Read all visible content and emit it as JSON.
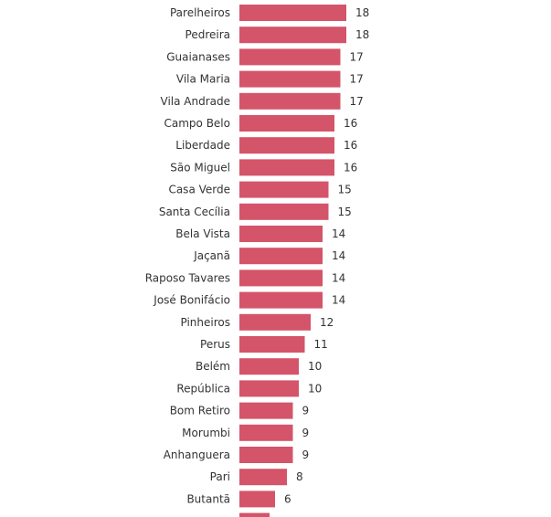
{
  "chart_data": {
    "type": "bar",
    "orientation": "horizontal",
    "bar_color": "#d45469",
    "categories": [
      "Parelheiros",
      "Pedreira",
      "Guaianases",
      "Vila Maria",
      "Vila Andrade",
      "Campo Belo",
      "Liberdade",
      "São Miguel",
      "Casa Verde",
      "Santa Cecília",
      "Bela Vista",
      "Jaçanã",
      "Raposo Tavares",
      "José Bonifácio",
      "Pinheiros",
      "Perus",
      "Belém",
      "República",
      "Bom Retiro",
      "Morumbi",
      "Anhanguera",
      "Pari",
      "Butantã"
    ],
    "values": [
      18,
      18,
      17,
      17,
      17,
      16,
      16,
      16,
      15,
      15,
      14,
      14,
      14,
      14,
      12,
      11,
      10,
      10,
      9,
      9,
      9,
      8,
      6
    ],
    "xlim": [
      0,
      18
    ]
  }
}
